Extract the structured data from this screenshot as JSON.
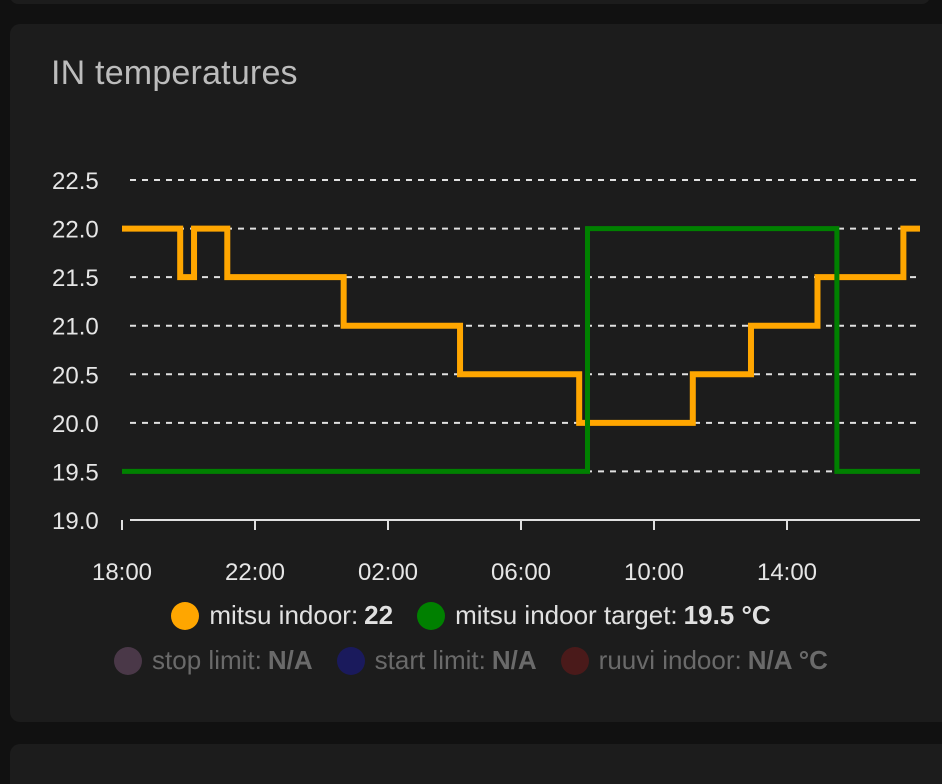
{
  "card": {
    "title": "IN temperatures"
  },
  "chart_data": {
    "type": "line",
    "step": true,
    "title": "IN temperatures",
    "ylim": [
      19.0,
      22.5
    ],
    "y_ticks": [
      "19.0",
      "19.5",
      "20.0",
      "20.5",
      "21.0",
      "21.5",
      "22.0",
      "22.5"
    ],
    "x_ticks": [
      "18:00",
      "22:00",
      "02:00",
      "06:00",
      "10:00",
      "14:00"
    ],
    "xlim": [
      "18:00",
      "18:00"
    ],
    "grid": true,
    "legend_position": "bottom",
    "series": [
      {
        "name": "mitsu indoor",
        "color": "#FFA600",
        "points": [
          [
            "18:00",
            22.0
          ],
          [
            "19:45",
            21.5
          ],
          [
            "20:10",
            22.0
          ],
          [
            "21:10",
            21.5
          ],
          [
            "00:40",
            21.0
          ],
          [
            "04:10",
            20.5
          ],
          [
            "07:45",
            20.0
          ],
          [
            "11:10",
            20.5
          ],
          [
            "12:55",
            21.0
          ],
          [
            "14:55",
            21.5
          ],
          [
            "17:30",
            22.0
          ],
          [
            "18:00",
            22.0
          ]
        ]
      },
      {
        "name": "mitsu indoor target",
        "color": "#008000",
        "points": [
          [
            "18:00",
            19.5
          ],
          [
            "08:00",
            22.0
          ],
          [
            "15:30",
            19.5
          ],
          [
            "18:00",
            19.5
          ]
        ]
      }
    ]
  },
  "legend": {
    "row1": [
      {
        "label": "mitsu indoor:",
        "value": "22",
        "color": "#FFA600"
      },
      {
        "label": "mitsu indoor target:",
        "value": "19.5 °C",
        "color": "#008000"
      }
    ],
    "row2": [
      {
        "label": "stop limit:",
        "value": "N/A",
        "color": "#4a3848"
      },
      {
        "label": "start limit:",
        "value": "N/A",
        "color": "#1a1a5c"
      },
      {
        "label": "ruuvi indoor:",
        "value": "N/A °C",
        "color": "#4a1a1a"
      }
    ]
  }
}
